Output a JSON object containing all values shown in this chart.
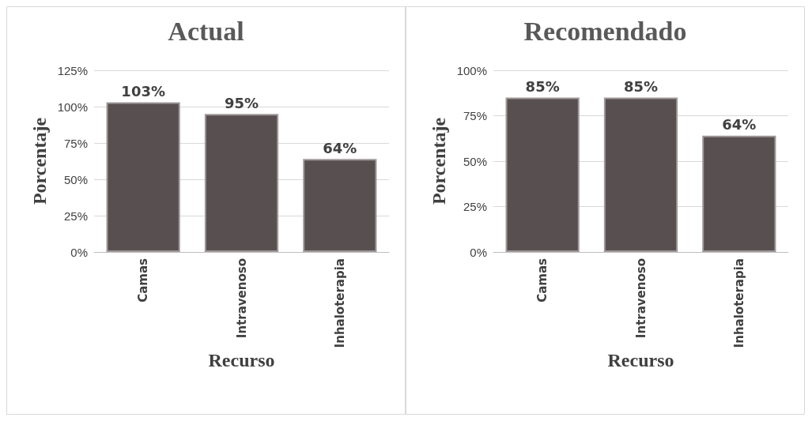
{
  "chart_data": [
    {
      "type": "bar",
      "title": "Actual",
      "xlabel": "Recurso",
      "ylabel": "Porcentaje",
      "categories": [
        "Camas",
        "Intravenoso",
        "Inhaloterapia"
      ],
      "values": [
        103,
        95,
        64
      ],
      "value_labels": [
        "103%",
        "95%",
        "64%"
      ],
      "color": "#585050",
      "ylim": [
        0,
        125
      ],
      "yticks": [
        {
          "value": 0,
          "label": "0%"
        },
        {
          "value": 25,
          "label": "25%"
        },
        {
          "value": 50,
          "label": "50%"
        },
        {
          "value": 75,
          "label": "75%"
        },
        {
          "value": 100,
          "label": "100%"
        },
        {
          "value": 125,
          "label": "125%"
        }
      ],
      "grid": "y"
    },
    {
      "type": "bar",
      "title": "Recomendado",
      "xlabel": "Recurso",
      "ylabel": "Porcentaje",
      "categories": [
        "Camas",
        "Intravenoso",
        "Inhaloterapia"
      ],
      "values": [
        85,
        85,
        64
      ],
      "value_labels": [
        "85%",
        "85%",
        "64%"
      ],
      "color": "#585050",
      "ylim": [
        0,
        100
      ],
      "yticks": [
        {
          "value": 0,
          "label": "0%"
        },
        {
          "value": 25,
          "label": "25%"
        },
        {
          "value": 50,
          "label": "50%"
        },
        {
          "value": 75,
          "label": "75%"
        },
        {
          "value": 100,
          "label": "100%"
        }
      ],
      "grid": "y"
    }
  ]
}
